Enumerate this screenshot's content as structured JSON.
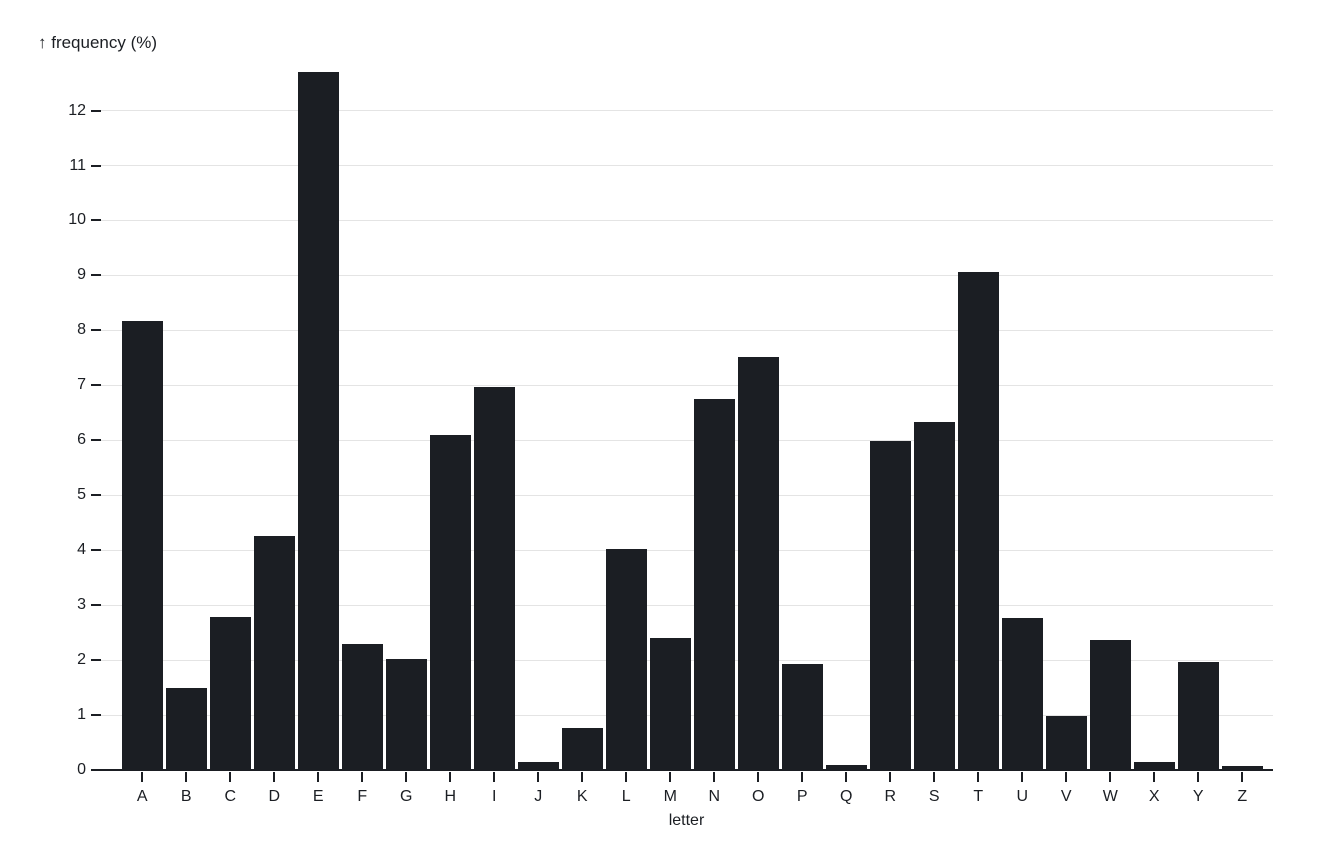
{
  "page": {
    "background": "#ffffff"
  },
  "chart_data": {
    "type": "bar",
    "title": "↑ frequency (%)",
    "xlabel": "letter",
    "ylabel": "frequency (%)",
    "categories": [
      "A",
      "B",
      "C",
      "D",
      "E",
      "F",
      "G",
      "H",
      "I",
      "J",
      "K",
      "L",
      "M",
      "N",
      "O",
      "P",
      "Q",
      "R",
      "S",
      "T",
      "U",
      "V",
      "W",
      "X",
      "Y",
      "Z"
    ],
    "values": [
      8.167,
      1.492,
      2.782,
      4.253,
      12.702,
      2.288,
      2.015,
      6.094,
      6.966,
      0.153,
      0.772,
      4.025,
      2.406,
      6.749,
      7.507,
      1.929,
      0.095,
      5.987,
      6.327,
      9.056,
      2.758,
      0.978,
      2.36,
      0.15,
      1.974,
      0.074
    ],
    "ylim": [
      0,
      12.702
    ],
    "yticks": [
      0,
      1,
      2,
      3,
      4,
      5,
      6,
      7,
      8,
      9,
      10,
      11,
      12
    ],
    "grid": true,
    "legend_position": "none",
    "bar_color": "#1b1e23",
    "grid_color": "#e4e4e4",
    "axis_color": "#1b1e23",
    "text_color": "#1b1e23"
  }
}
